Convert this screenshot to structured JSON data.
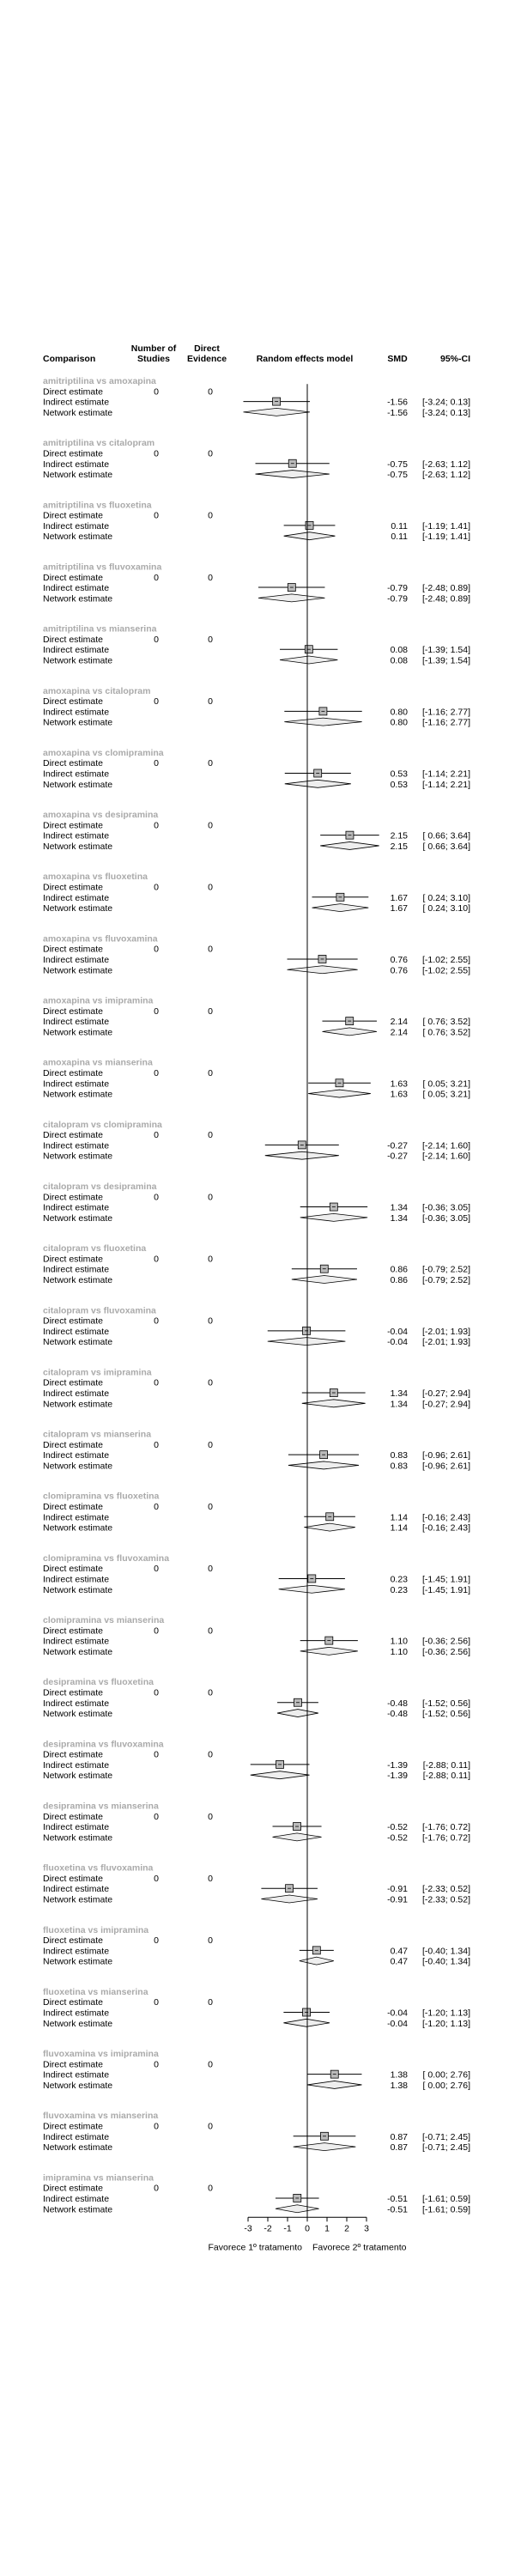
{
  "header": {
    "comparison": "Comparison",
    "studies_line1": "Number of",
    "studies_line2": "Studies",
    "direct_line1": "Direct",
    "direct_line2": "Evidence",
    "model": "Random effects model",
    "smd": "SMD",
    "ci": "95%-CI"
  },
  "row_labels": {
    "direct": "Direct estimate",
    "indirect": "Indirect estimate",
    "network": "Network estimate"
  },
  "colors": {
    "group_title": "#aaaaaa",
    "text": "#000000",
    "box_fill": "#bbbbbb",
    "diamond_fill": "#eeeeee",
    "line": "#000000"
  },
  "chart_data": {
    "type": "forest",
    "title": "",
    "xlim": [
      -3,
      3
    ],
    "xticks": [
      "-3",
      "-2",
      "-1",
      "0",
      "1",
      "2",
      "3"
    ],
    "xlabel_left": "Favorece 1º tratamento",
    "xlabel_right": "Favorece 2º tratamento",
    "comparisons": [
      {
        "name": "amitriptilina vs amoxapina",
        "studies": "0",
        "direct": "0",
        "smd": -1.56,
        "lo": -3.24,
        "hi": 0.13,
        "smd_text": "-1.56",
        "ci_text": "[-3.24; 0.13]"
      },
      {
        "name": "amitriptilina vs citalopram",
        "studies": "0",
        "direct": "0",
        "smd": -0.75,
        "lo": -2.63,
        "hi": 1.12,
        "smd_text": "-0.75",
        "ci_text": "[-2.63; 1.12]"
      },
      {
        "name": "amitriptilina vs fluoxetina",
        "studies": "0",
        "direct": "0",
        "smd": 0.11,
        "lo": -1.19,
        "hi": 1.41,
        "smd_text": "0.11",
        "ci_text": "[-1.19; 1.41]"
      },
      {
        "name": "amitriptilina vs fluvoxamina",
        "studies": "0",
        "direct": "0",
        "smd": -0.79,
        "lo": -2.48,
        "hi": 0.89,
        "smd_text": "-0.79",
        "ci_text": "[-2.48; 0.89]"
      },
      {
        "name": "amitriptilina vs mianserina",
        "studies": "0",
        "direct": "0",
        "smd": 0.08,
        "lo": -1.39,
        "hi": 1.54,
        "smd_text": "0.08",
        "ci_text": "[-1.39; 1.54]"
      },
      {
        "name": "amoxapina vs citalopram",
        "studies": "0",
        "direct": "0",
        "smd": 0.8,
        "lo": -1.16,
        "hi": 2.77,
        "smd_text": "0.80",
        "ci_text": "[-1.16; 2.77]"
      },
      {
        "name": "amoxapina vs clomipramina",
        "studies": "0",
        "direct": "0",
        "smd": 0.53,
        "lo": -1.14,
        "hi": 2.21,
        "smd_text": "0.53",
        "ci_text": "[-1.14; 2.21]"
      },
      {
        "name": "amoxapina vs desipramina",
        "studies": "0",
        "direct": "0",
        "smd": 2.15,
        "lo": 0.66,
        "hi": 3.64,
        "smd_text": "2.15",
        "ci_text": "[ 0.66; 3.64]"
      },
      {
        "name": "amoxapina vs fluoxetina",
        "studies": "0",
        "direct": "0",
        "smd": 1.67,
        "lo": 0.24,
        "hi": 3.1,
        "smd_text": "1.67",
        "ci_text": "[ 0.24; 3.10]"
      },
      {
        "name": "amoxapina vs fluvoxamina",
        "studies": "0",
        "direct": "0",
        "smd": 0.76,
        "lo": -1.02,
        "hi": 2.55,
        "smd_text": "0.76",
        "ci_text": "[-1.02; 2.55]"
      },
      {
        "name": "amoxapina vs imipramina",
        "studies": "0",
        "direct": "0",
        "smd": 2.14,
        "lo": 0.76,
        "hi": 3.52,
        "smd_text": "2.14",
        "ci_text": "[ 0.76; 3.52]"
      },
      {
        "name": "amoxapina vs mianserina",
        "studies": "0",
        "direct": "0",
        "smd": 1.63,
        "lo": 0.05,
        "hi": 3.21,
        "smd_text": "1.63",
        "ci_text": "[ 0.05; 3.21]"
      },
      {
        "name": "citalopram vs clomipramina",
        "studies": "0",
        "direct": "0",
        "smd": -0.27,
        "lo": -2.14,
        "hi": 1.6,
        "smd_text": "-0.27",
        "ci_text": "[-2.14; 1.60]"
      },
      {
        "name": "citalopram vs desipramina",
        "studies": "0",
        "direct": "0",
        "smd": 1.34,
        "lo": -0.36,
        "hi": 3.05,
        "smd_text": "1.34",
        "ci_text": "[-0.36; 3.05]"
      },
      {
        "name": "citalopram vs fluoxetina",
        "studies": "0",
        "direct": "0",
        "smd": 0.86,
        "lo": -0.79,
        "hi": 2.52,
        "smd_text": "0.86",
        "ci_text": "[-0.79; 2.52]"
      },
      {
        "name": "citalopram vs fluvoxamina",
        "studies": "0",
        "direct": "0",
        "smd": -0.04,
        "lo": -2.01,
        "hi": 1.93,
        "smd_text": "-0.04",
        "ci_text": "[-2.01; 1.93]"
      },
      {
        "name": "citalopram vs imipramina",
        "studies": "0",
        "direct": "0",
        "smd": 1.34,
        "lo": -0.27,
        "hi": 2.94,
        "smd_text": "1.34",
        "ci_text": "[-0.27; 2.94]"
      },
      {
        "name": "citalopram vs mianserina",
        "studies": "0",
        "direct": "0",
        "smd": 0.83,
        "lo": -0.96,
        "hi": 2.61,
        "smd_text": "0.83",
        "ci_text": "[-0.96; 2.61]"
      },
      {
        "name": "clomipramina vs fluoxetina",
        "studies": "0",
        "direct": "0",
        "smd": 1.14,
        "lo": -0.16,
        "hi": 2.43,
        "smd_text": "1.14",
        "ci_text": "[-0.16; 2.43]"
      },
      {
        "name": "clomipramina vs fluvoxamina",
        "studies": "0",
        "direct": "0",
        "smd": 0.23,
        "lo": -1.45,
        "hi": 1.91,
        "smd_text": "0.23",
        "ci_text": "[-1.45; 1.91]"
      },
      {
        "name": "clomipramina vs mianserina",
        "studies": "0",
        "direct": "0",
        "smd": 1.1,
        "lo": -0.36,
        "hi": 2.56,
        "smd_text": "1.10",
        "ci_text": "[-0.36; 2.56]"
      },
      {
        "name": "desipramina vs fluoxetina",
        "studies": "0",
        "direct": "0",
        "smd": -0.48,
        "lo": -1.52,
        "hi": 0.56,
        "smd_text": "-0.48",
        "ci_text": "[-1.52; 0.56]"
      },
      {
        "name": "desipramina vs fluvoxamina",
        "studies": "0",
        "direct": "0",
        "smd": -1.39,
        "lo": -2.88,
        "hi": 0.11,
        "smd_text": "-1.39",
        "ci_text": "[-2.88; 0.11]"
      },
      {
        "name": "desipramina vs mianserina",
        "studies": "0",
        "direct": "0",
        "smd": -0.52,
        "lo": -1.76,
        "hi": 0.72,
        "smd_text": "-0.52",
        "ci_text": "[-1.76; 0.72]"
      },
      {
        "name": "fluoxetina vs fluvoxamina",
        "studies": "0",
        "direct": "0",
        "smd": -0.91,
        "lo": -2.33,
        "hi": 0.52,
        "smd_text": "-0.91",
        "ci_text": "[-2.33; 0.52]"
      },
      {
        "name": "fluoxetina vs imipramina",
        "studies": "0",
        "direct": "0",
        "smd": 0.47,
        "lo": -0.4,
        "hi": 1.34,
        "smd_text": "0.47",
        "ci_text": "[-0.40; 1.34]"
      },
      {
        "name": "fluoxetina vs mianserina",
        "studies": "0",
        "direct": "0",
        "smd": -0.04,
        "lo": -1.2,
        "hi": 1.13,
        "smd_text": "-0.04",
        "ci_text": "[-1.20; 1.13]"
      },
      {
        "name": "fluvoxamina vs imipramina",
        "studies": "0",
        "direct": "0",
        "smd": 1.38,
        "lo": 0.0,
        "hi": 2.76,
        "smd_text": "1.38",
        "ci_text": "[ 0.00; 2.76]"
      },
      {
        "name": "fluvoxamina vs mianserina",
        "studies": "0",
        "direct": "0",
        "smd": 0.87,
        "lo": -0.71,
        "hi": 2.45,
        "smd_text": "0.87",
        "ci_text": "[-0.71; 2.45]"
      },
      {
        "name": "imipramina vs mianserina",
        "studies": "0",
        "direct": "0",
        "smd": -0.51,
        "lo": -1.61,
        "hi": 0.59,
        "smd_text": "-0.51",
        "ci_text": "[-1.61; 0.59]"
      }
    ]
  }
}
